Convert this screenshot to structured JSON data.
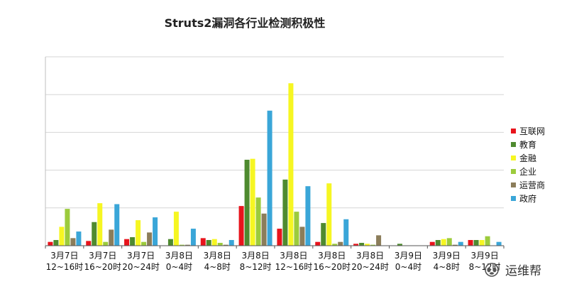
{
  "chart_data": {
    "type": "bar",
    "title": "Struts2漏洞各行业检测积极性",
    "categories": [
      [
        "3月7日",
        "12~16时"
      ],
      [
        "3月7日",
        "16~20时"
      ],
      [
        "3月7日",
        "20~24时"
      ],
      [
        "3月8日",
        "0~4时"
      ],
      [
        "3月8日",
        "4~8时"
      ],
      [
        "3月8日",
        "8~12时"
      ],
      [
        "3月8日",
        "12~16时"
      ],
      [
        "3月8日",
        "16~20时"
      ],
      [
        "3月8日",
        "20~24时"
      ],
      [
        "3月9日",
        "0~4时"
      ],
      [
        "3月9日",
        "4~8时"
      ],
      [
        "3月9日",
        "8~12时"
      ]
    ],
    "ylim": [
      0,
      100
    ],
    "y_gridlines": [
      0,
      20,
      40,
      60,
      80,
      100
    ],
    "y_tick_labels_visible": false,
    "grid": true,
    "legend_position": "right",
    "series": [
      {
        "name": "互联网",
        "color": "#e8141c",
        "values": [
          2,
          2.5,
          3.5,
          0,
          4,
          21,
          9,
          2,
          1,
          0,
          2,
          3
        ]
      },
      {
        "name": "教育",
        "color": "#4e8a2f",
        "values": [
          3,
          12.5,
          4.5,
          3.5,
          3,
          45.5,
          35,
          12,
          1.5,
          1,
          3,
          3
        ]
      },
      {
        "name": "金融",
        "color": "#f6f622",
        "values": [
          10,
          22.5,
          13.5,
          18,
          3.5,
          46,
          86,
          33,
          1,
          0,
          3.5,
          3
        ]
      },
      {
        "name": "企业",
        "color": "#9ccb3c",
        "values": [
          19.5,
          2,
          2,
          0.5,
          1.5,
          25.5,
          18,
          1,
          0.5,
          0,
          4,
          5
        ]
      },
      {
        "name": "运营商",
        "color": "#8b7d5a",
        "values": [
          4,
          8.5,
          7,
          0.5,
          0.5,
          17,
          10,
          2,
          5.5,
          0,
          0.5,
          0
        ]
      },
      {
        "name": "政府",
        "color": "#3aa6d8",
        "values": [
          7.5,
          22,
          15,
          9,
          3,
          71.5,
          31.5,
          14,
          0,
          0,
          2,
          2
        ]
      }
    ]
  },
  "watermark": {
    "text": "运维帮",
    "icon": "paw-logo-icon"
  }
}
